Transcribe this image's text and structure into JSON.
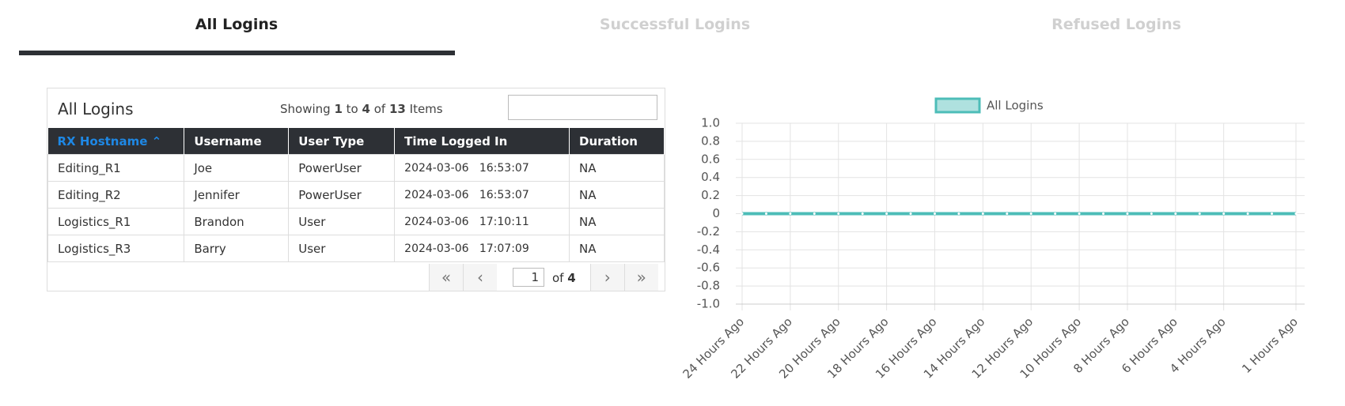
{
  "tabs": [
    "All Logins",
    "Successful Logins",
    "Refused Logins"
  ],
  "table": {
    "title": "All Logins",
    "showing": {
      "prefix": "Showing",
      "from": 1,
      "to_word": "to",
      "to": 4,
      "of_word": "of",
      "total": 13,
      "suffix": "Items"
    },
    "columns": [
      "RX Hostname",
      "Username",
      "User Type",
      "Time Logged In",
      "Duration"
    ],
    "rows": [
      [
        "Editing_R1",
        "Joe",
        "PowerUser",
        "2024-03-06   16:53:07",
        "NA"
      ],
      [
        "Editing_R2",
        "Jennifer",
        "PowerUser",
        "2024-03-06   16:53:07",
        "NA"
      ],
      [
        "Logistics_R1",
        "Brandon",
        "User",
        "2024-03-06   17:10:11",
        "NA"
      ],
      [
        "Logistics_R3",
        "Barry",
        "User",
        "2024-03-06   17:07:09",
        "NA"
      ]
    ],
    "pagination": {
      "page": 1,
      "of_word": "of",
      "pages": 4
    }
  },
  "chart_data": {
    "type": "line",
    "categories": [
      "24 Hours Ago",
      null,
      "22 Hours Ago",
      null,
      "20 Hours Ago",
      null,
      "18 Hours Ago",
      null,
      "16 Hours Ago",
      null,
      "14 Hours Ago",
      null,
      "12 Hours Ago",
      null,
      "10 Hours Ago",
      null,
      "8 Hours Ago",
      null,
      "6 Hours Ago",
      null,
      "4 Hours Ago",
      null,
      null,
      "1 Hours Ago"
    ],
    "series": [
      {
        "name": "All Logins",
        "color": "#4dbdb8",
        "values": [
          0,
          0,
          0,
          0,
          0,
          0,
          0,
          0,
          0,
          0,
          0,
          0,
          0,
          0,
          0,
          0,
          0,
          0,
          0,
          0,
          0,
          0,
          0,
          0
        ]
      }
    ],
    "ylim": [
      -1,
      1
    ],
    "yticks": [
      {
        "value": 1,
        "label": "1.0"
      },
      0.8,
      0.6,
      0.4,
      0.2,
      0,
      -0.2,
      -0.4,
      -0.6,
      -0.8,
      {
        "value": -1,
        "label": "-1.0"
      }
    ],
    "grid": true,
    "legend": "top"
  }
}
